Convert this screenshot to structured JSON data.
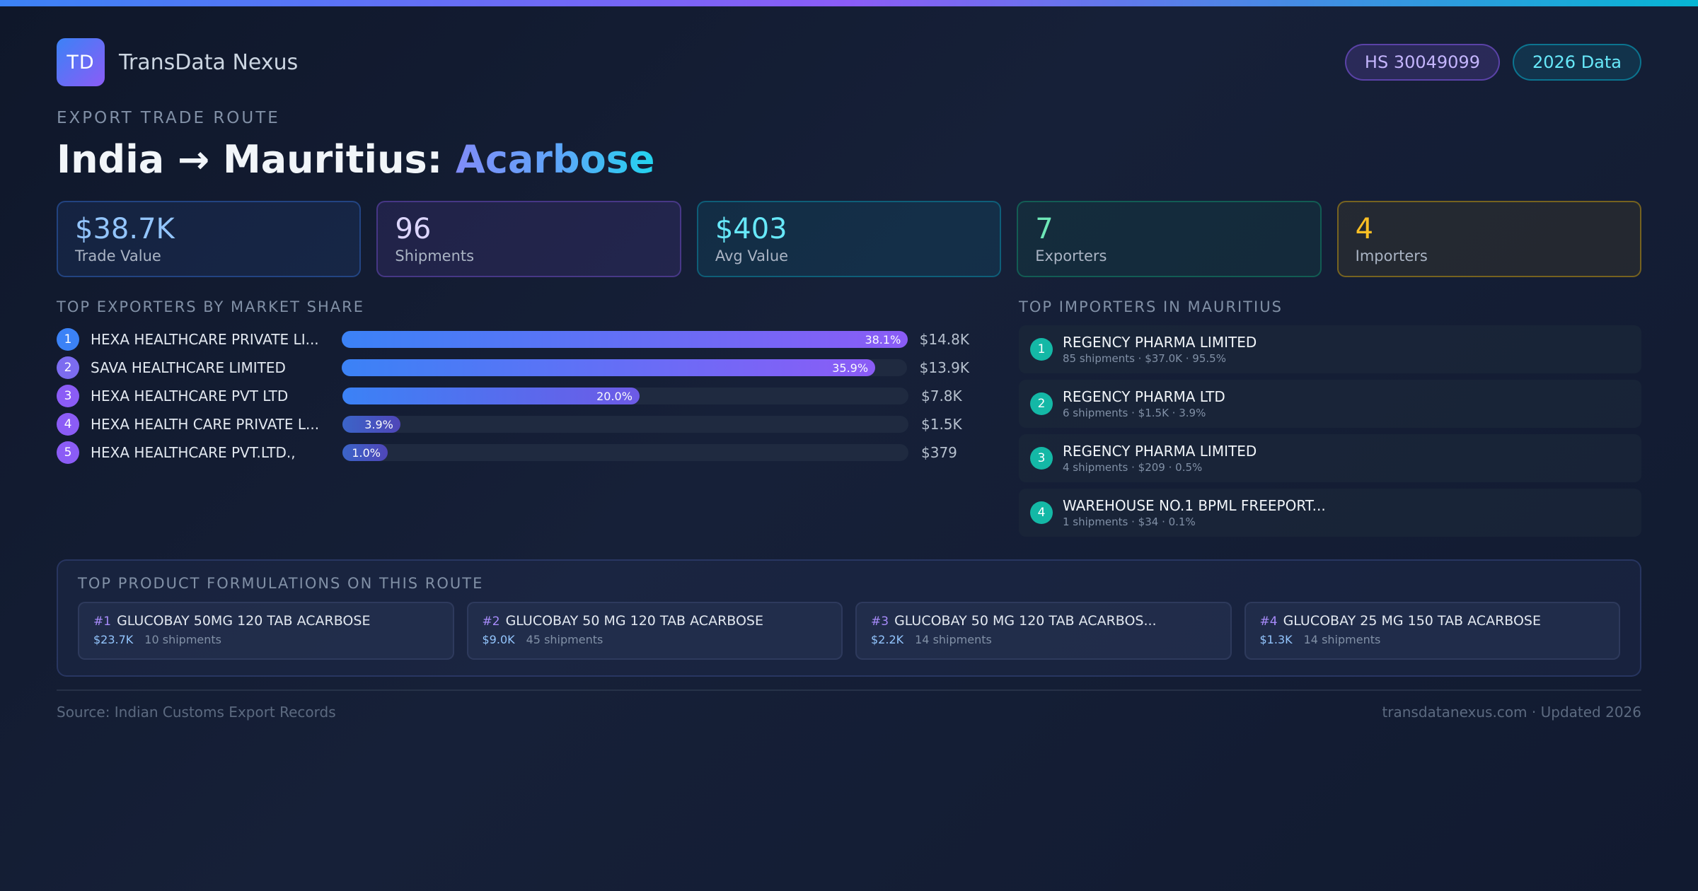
{
  "brand": {
    "logo": "TD",
    "name": "TransData Nexus"
  },
  "badges": {
    "hs": "HS 30049099",
    "year": "2026 Data"
  },
  "route": {
    "eyebrow": "EXPORT TRADE ROUTE",
    "title_main": "India → Mauritius: ",
    "title_accent": "Acarbose"
  },
  "stats": [
    {
      "value": "$38.7K",
      "label": "Trade Value"
    },
    {
      "value": "96",
      "label": "Shipments"
    },
    {
      "value": "$403",
      "label": "Avg Value"
    },
    {
      "value": "7",
      "label": "Exporters"
    },
    {
      "value": "4",
      "label": "Importers"
    }
  ],
  "exporters": {
    "title": "TOP EXPORTERS BY MARKET SHARE",
    "items": [
      {
        "rank": "1",
        "name": "HEXA HEALTHCARE PRIVATE LI...",
        "share": 38.1,
        "share_label": "38.1%",
        "value": "$14.8K",
        "color": "#3b82f6"
      },
      {
        "rank": "2",
        "name": "SAVA HEALTHCARE LIMITED",
        "share": 35.9,
        "share_label": "35.9%",
        "value": "$13.9K",
        "color": "#7c6cf0"
      },
      {
        "rank": "3",
        "name": "HEXA HEALTHCARE PVT LTD",
        "share": 20.0,
        "share_label": "20.0%",
        "value": "$7.8K",
        "color": "#8b5cf6"
      },
      {
        "rank": "4",
        "name": "HEXA HEALTH CARE PRIVATE L...",
        "share": 3.9,
        "share_label": "3.9%",
        "value": "$1.5K",
        "color": "#8b5cf6"
      },
      {
        "rank": "5",
        "name": "HEXA HEALTHCARE PVT.LTD.,",
        "share": 1.0,
        "share_label": "1.0%",
        "value": "$379",
        "color": "#8b5cf6"
      }
    ]
  },
  "importers": {
    "title": "TOP IMPORTERS IN MAURITIUS",
    "items": [
      {
        "rank": "1",
        "name": "REGENCY PHARMA LIMITED",
        "sub": "85 shipments · $37.0K · 95.5%"
      },
      {
        "rank": "2",
        "name": "REGENCY PHARMA LTD",
        "sub": "6 shipments · $1.5K · 3.9%"
      },
      {
        "rank": "3",
        "name": "REGENCY PHARMA LIMITED",
        "sub": "4 shipments · $209 · 0.5%"
      },
      {
        "rank": "4",
        "name": "WAREHOUSE NO.1 BPML FREEPORT...",
        "sub": "1 shipments · $34 · 0.1%"
      }
    ]
  },
  "products": {
    "title": "TOP PRODUCT FORMULATIONS ON THIS ROUTE",
    "items": [
      {
        "num": "#1",
        "name": "GLUCOBAY 50MG 120 TAB ACARBOSE",
        "value": "$23.7K",
        "shipments": "10 shipments"
      },
      {
        "num": "#2",
        "name": "GLUCOBAY 50 MG 120 TAB ACARBOSE",
        "value": "$9.0K",
        "shipments": "45 shipments"
      },
      {
        "num": "#3",
        "name": "GLUCOBAY 50 MG 120 TAB ACARBOS...",
        "value": "$2.2K",
        "shipments": "14 shipments"
      },
      {
        "num": "#4",
        "name": "GLUCOBAY 25 MG 150 TAB ACARBOSE",
        "value": "$1.3K",
        "shipments": "14 shipments"
      }
    ]
  },
  "footer": {
    "source": "Source: Indian Customs Export Records",
    "site": "transdatanexus.com · Updated 2026"
  }
}
